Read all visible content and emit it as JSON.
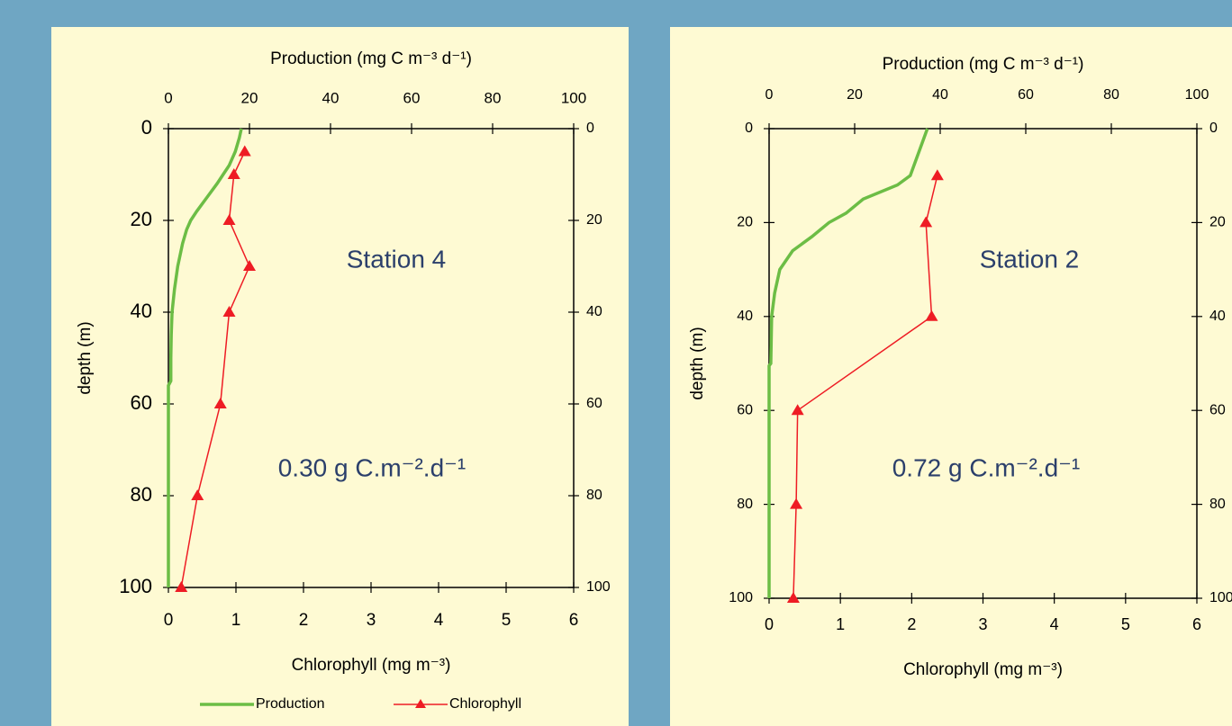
{
  "chart_data": [
    {
      "type": "line",
      "annotations": [
        "Station 4",
        "0.30 g C.m⁻².d⁻¹"
      ],
      "x_label": "Chlorophyll (mg m⁻³)",
      "x2_label": "Production (mg C m⁻³ d⁻¹)",
      "y_label": "depth (m)",
      "xlim": [
        0,
        6
      ],
      "xticks": [
        0,
        1,
        2,
        3,
        4,
        5,
        6
      ],
      "x2lim": [
        0,
        100
      ],
      "x2ticks": [
        0,
        20,
        40,
        60,
        80,
        100
      ],
      "ylim": [
        0,
        100
      ],
      "yticks": [
        0,
        20,
        40,
        60,
        80,
        100
      ],
      "y_inverted": true,
      "y2lim": [
        0,
        100
      ],
      "y2ticks": [
        0,
        20,
        40,
        60,
        80,
        100
      ],
      "legend": "bottom",
      "series": [
        {
          "name": "Production",
          "color": "#6cbd45",
          "axis": "x2",
          "x": [
            18,
            17.5,
            16.5,
            15,
            13.5,
            12,
            9.5,
            7,
            5.5,
            4.5,
            3.5,
            2.3,
            1.5,
            0.9,
            0.7,
            0.6,
            0.6,
            0,
            0,
            0,
            0
          ],
          "values": [
            0,
            2,
            5,
            8,
            10,
            12,
            15,
            18,
            20,
            22,
            25,
            30,
            35,
            40,
            45,
            50,
            55,
            56,
            60,
            80,
            100
          ]
        },
        {
          "name": "Chlorophyll",
          "color": "#ee1c24",
          "marker": "triangle",
          "x": [
            1.13,
            0.97,
            0.9,
            1.2,
            0.9,
            0.77,
            0.43,
            0.19
          ],
          "values": [
            5,
            10,
            20,
            30,
            40,
            60,
            80,
            100
          ]
        }
      ]
    },
    {
      "type": "line",
      "annotations": [
        "Station 2",
        "0.72 g C.m⁻².d⁻¹"
      ],
      "x_label": "Chlorophyll (mg m⁻³)",
      "x2_label": "Production (mg C m⁻³ d⁻¹)",
      "y_label": "depth (m)",
      "xlim": [
        0,
        6
      ],
      "xticks": [
        0,
        1,
        2,
        3,
        4,
        5,
        6
      ],
      "x2lim": [
        0,
        100
      ],
      "x2ticks": [
        0,
        20,
        40,
        60,
        80,
        100
      ],
      "ylim": [
        0,
        100
      ],
      "yticks": [
        0,
        20,
        40,
        60,
        80,
        100
      ],
      "y_inverted": true,
      "y2lim": [
        0,
        100
      ],
      "y2ticks": [
        0,
        20,
        40,
        60,
        80,
        100
      ],
      "series": [
        {
          "color": "#6cbd45",
          "axis": "x2",
          "x": [
            37,
            35,
            33,
            30,
            22,
            18,
            14,
            10,
            5.5,
            2.5,
            1.3,
            0.6,
            0.4,
            0,
            0,
            0
          ],
          "values": [
            0,
            5,
            10,
            12,
            15,
            18,
            20,
            23,
            26,
            30,
            35,
            40,
            50,
            50.5,
            80,
            100
          ]
        },
        {
          "color": "#ee1c24",
          "marker": "triangle",
          "x": [
            2.36,
            2.2,
            2.28,
            0.4,
            0.38,
            0.34
          ],
          "values": [
            10,
            20,
            40,
            60,
            80,
            100
          ]
        }
      ]
    }
  ]
}
